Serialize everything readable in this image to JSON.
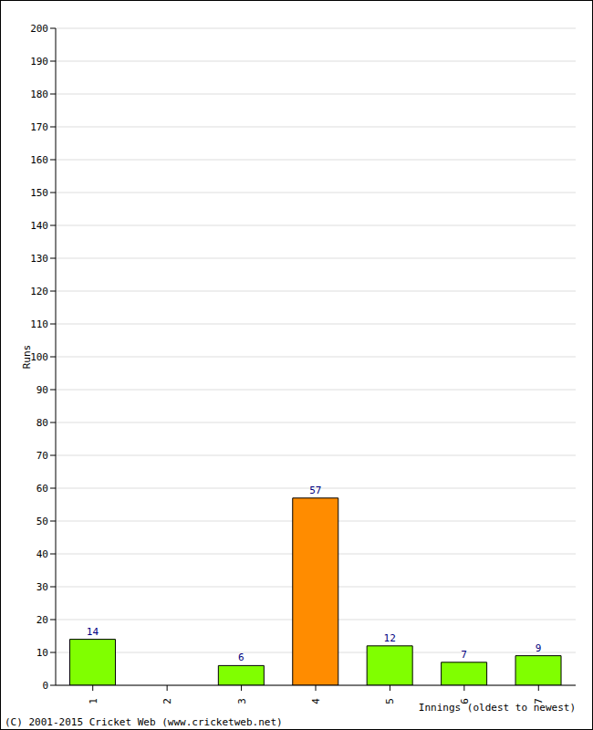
{
  "chart_data": {
    "type": "bar",
    "categories": [
      "1",
      "2",
      "3",
      "4",
      "5",
      "6",
      "7"
    ],
    "values": [
      14,
      0,
      6,
      57,
      12,
      7,
      9
    ],
    "colors": [
      "#80ff00",
      "#80ff00",
      "#80ff00",
      "#ff8c00",
      "#80ff00",
      "#80ff00",
      "#80ff00"
    ],
    "x_label": "Innings (oldest to newest)",
    "y_label": "Runs",
    "ylim": [
      0,
      200
    ],
    "yticks": [
      0,
      10,
      20,
      30,
      40,
      50,
      60,
      70,
      80,
      90,
      100,
      110,
      120,
      130,
      140,
      150,
      160,
      170,
      180,
      190,
      200
    ],
    "grid": true,
    "data_labels": true,
    "annotations": [
      "(C) 2001-2015 Cricket Web (www.cricketweb.net)"
    ]
  }
}
